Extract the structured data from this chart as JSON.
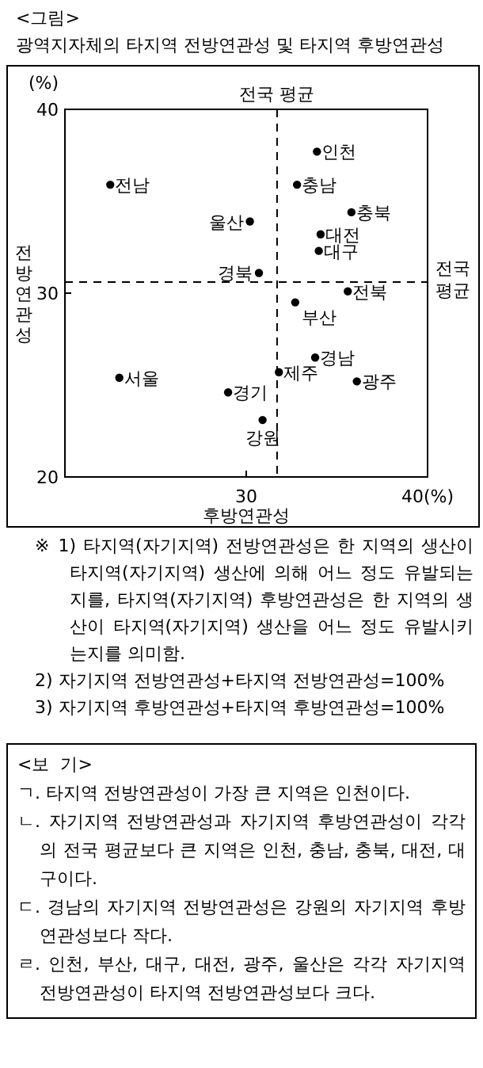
{
  "chart_data": {
    "type": "scatter",
    "subtitle": "<그림>",
    "title": "광역지자체의 타지역 전방연관성 및 타지역 후방연관성",
    "xlabel": "후방연관성",
    "ylabel": "전방연관성",
    "xlim": [
      20,
      40
    ],
    "ylim": [
      20,
      40
    ],
    "xticks": [
      30,
      {
        "value": 40,
        "label": "40(%)"
      }
    ],
    "yticks": [
      20,
      30,
      40
    ],
    "marker": "circle",
    "ref_lines": [
      {
        "axis": "x",
        "value": 31.7,
        "label": "전국 평균",
        "line_style": "dashed"
      },
      {
        "axis": "y",
        "value": 30.6,
        "label": "전국 평균",
        "line_style": "dashed"
      }
    ],
    "series": [
      {
        "name": "인천",
        "color": "#000000",
        "x": [
          33.9
        ],
        "values": [
          37.7
        ]
      },
      {
        "name": "전남",
        "color": "#000000",
        "x": [
          22.5
        ],
        "values": [
          35.9
        ]
      },
      {
        "name": "충남",
        "color": "#000000",
        "x": [
          32.8
        ],
        "values": [
          35.9
        ]
      },
      {
        "name": "충북",
        "color": "#000000",
        "x": [
          35.8
        ],
        "values": [
          34.4
        ]
      },
      {
        "name": "울산",
        "color": "#000000",
        "x": [
          30.2
        ],
        "values": [
          33.9
        ]
      },
      {
        "name": "대전",
        "color": "#000000",
        "x": [
          34.1
        ],
        "values": [
          33.2
        ]
      },
      {
        "name": "대구",
        "color": "#000000",
        "x": [
          34.0
        ],
        "values": [
          32.3
        ]
      },
      {
        "name": "경북",
        "color": "#000000",
        "x": [
          30.7
        ],
        "values": [
          31.1
        ]
      },
      {
        "name": "전북",
        "color": "#000000",
        "x": [
          35.6
        ],
        "values": [
          30.1
        ]
      },
      {
        "name": "부산",
        "color": "#000000",
        "x": [
          32.7
        ],
        "values": [
          29.5
        ]
      },
      {
        "name": "경남",
        "color": "#000000",
        "x": [
          33.8
        ],
        "values": [
          26.5
        ]
      },
      {
        "name": "제주",
        "color": "#000000",
        "x": [
          31.8
        ],
        "values": [
          25.7
        ]
      },
      {
        "name": "서울",
        "color": "#000000",
        "x": [
          23.0
        ],
        "values": [
          25.4
        ]
      },
      {
        "name": "광주",
        "color": "#000000",
        "x": [
          36.1
        ],
        "values": [
          25.2
        ]
      },
      {
        "name": "경기",
        "color": "#000000",
        "x": [
          29.0
        ],
        "values": [
          24.6
        ]
      },
      {
        "name": "강원",
        "color": "#000000",
        "x": [
          30.9
        ],
        "values": [
          23.1
        ]
      }
    ],
    "annotations": [
      "(%)",
      "※ 1) 타지역(자기지역) 전방연관성은 한 지역의 생산이 타지역(자기지역) 생산에 의해 어느 정도 유발되는지를, 타지역(자기지역) 후방연관성은 한 지역의 생산이 타지역(자기지역) 생산을 어느 정도 유발시키는지를 의미함.",
      "2) 자기지역 전방연관성+타지역 전방연관성=100%",
      "3) 자기지역 후방연관성+타지역 후방연관성=100%",
      "<보  기>",
      "ㄱ. 타지역 전방연관성이 가장 큰 지역은 인천이다.",
      "ㄴ. 자기지역 전방연관성과 자기지역 후방연관성이 각각의 전국 평균보다 큰 지역은 인천, 충남, 충북, 대전, 대구이다.",
      "ㄷ. 경남의 자기지역 전방연관성은 강원의 자기지역 후방연관성보다 작다.",
      "ㄹ. 인천, 부산, 대구, 대전, 광주, 울산은 각각 자기지역 전방연관성이 타지역 전방연관성보다 크다."
    ]
  }
}
